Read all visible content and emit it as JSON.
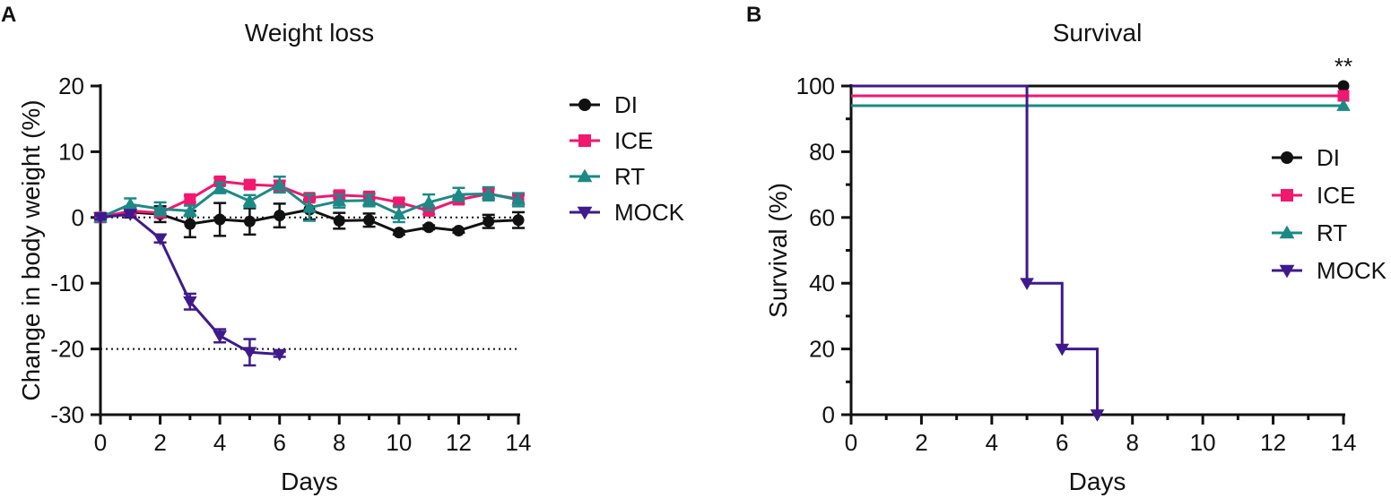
{
  "colors": {
    "DI": "#111111",
    "ICE": "#f2176f",
    "RT": "#1b8a87",
    "MOCK": "#3f1a8c",
    "axis": "#111111"
  },
  "chart_data": [
    {
      "panel": "A",
      "type": "line",
      "title": "Weight loss",
      "xlabel": "Days",
      "ylabel": "Change in body weight (%)",
      "xlim": [
        0,
        14
      ],
      "ylim": [
        -30,
        20
      ],
      "xticks": [
        0,
        2,
        4,
        6,
        8,
        10,
        12,
        14
      ],
      "yticks": [
        20,
        10,
        0,
        -10,
        -20,
        -30
      ],
      "reference_lines": [
        0,
        -20
      ],
      "series": [
        {
          "name": "DI",
          "marker": "circle",
          "x": [
            0,
            1,
            2,
            3,
            4,
            5,
            6,
            7,
            8,
            9,
            10,
            11,
            12,
            13,
            14
          ],
          "y": [
            0,
            0.8,
            0.5,
            -1,
            -0.3,
            -0.6,
            0.3,
            1.2,
            -0.5,
            -0.4,
            -2.3,
            -1.5,
            -2,
            -0.6,
            -0.4
          ],
          "err": [
            0.3,
            0.8,
            1.2,
            2,
            2.5,
            2,
            1.8,
            1.5,
            1.2,
            1,
            0.3,
            0.3,
            0.3,
            1,
            1.2
          ]
        },
        {
          "name": "ICE",
          "marker": "square",
          "x": [
            0,
            1,
            2,
            3,
            4,
            5,
            6,
            7,
            8,
            9,
            10,
            11,
            12,
            13,
            14
          ],
          "y": [
            0,
            1,
            0.7,
            2.8,
            5.5,
            5,
            4.8,
            3,
            3.4,
            3.2,
            2.3,
            1,
            2.7,
            3.6,
            2.8
          ],
          "err": [
            0.3,
            0.6,
            0.6,
            0.5,
            0.5,
            0.5,
            0.8,
            0.5,
            0.5,
            0.5,
            0.5,
            0.5,
            0.6,
            0.7,
            0.6
          ]
        },
        {
          "name": "RT",
          "marker": "triangle-up",
          "x": [
            0,
            1,
            2,
            3,
            4,
            5,
            6,
            7,
            8,
            9,
            10,
            11,
            12,
            13,
            14
          ],
          "y": [
            0,
            2,
            1.3,
            1,
            4.5,
            2.5,
            5,
            1.5,
            2.5,
            2.6,
            0.5,
            2.3,
            3.5,
            3.6,
            2.7
          ],
          "err": [
            0.3,
            0.9,
            1,
            0.8,
            0.8,
            0.9,
            1.2,
            2,
            1,
            0.9,
            1.2,
            1.2,
            1,
            1,
            1
          ]
        },
        {
          "name": "MOCK",
          "marker": "triangle-down",
          "x": [
            0,
            1,
            2,
            3,
            4,
            5,
            6
          ],
          "y": [
            0,
            0.5,
            -3.2,
            -12.8,
            -18,
            -20.5,
            -20.8
          ],
          "err": [
            0.3,
            0.4,
            0.6,
            1.2,
            1,
            2,
            0.4
          ]
        }
      ]
    },
    {
      "panel": "B",
      "type": "line",
      "title": "Survival",
      "xlabel": "Days",
      "ylabel": "Survival (%)",
      "xlim": [
        0,
        14
      ],
      "ylim": [
        0,
        100
      ],
      "xticks": [
        0,
        2,
        4,
        6,
        8,
        10,
        12,
        14
      ],
      "yticks": [
        0,
        20,
        40,
        60,
        80,
        100
      ],
      "annotation": "**",
      "series": [
        {
          "name": "DI",
          "marker": "circle",
          "x": [
            0,
            14
          ],
          "y": [
            100,
            100
          ]
        },
        {
          "name": "ICE",
          "marker": "square",
          "x": [
            0,
            14
          ],
          "y": [
            97,
            97
          ]
        },
        {
          "name": "RT",
          "marker": "triangle-up",
          "x": [
            0,
            14
          ],
          "y": [
            94,
            94
          ]
        },
        {
          "name": "MOCK",
          "marker": "triangle-down",
          "x": [
            0,
            5,
            5,
            6,
            6,
            7,
            7
          ],
          "y": [
            100,
            100,
            40,
            40,
            20,
            20,
            0
          ]
        }
      ]
    }
  ]
}
